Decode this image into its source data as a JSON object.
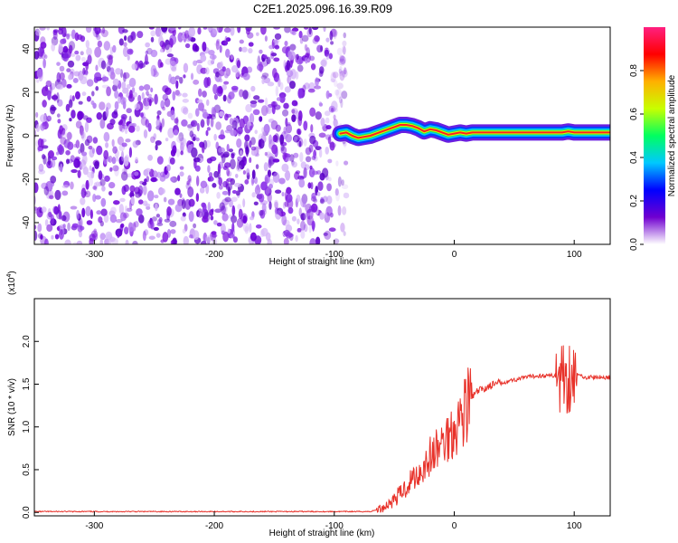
{
  "title": "C2E1.2025.096.16.39.R09",
  "chart_data": [
    {
      "type": "heatmap",
      "xlabel": "Height of straight line (km)",
      "ylabel": "Frequency (Hz)",
      "xlim": [
        -350,
        130
      ],
      "ylim": [
        -50,
        50
      ],
      "xticks": [
        -300,
        -200,
        -100,
        0,
        100
      ],
      "yticks": [
        -40,
        -20,
        0,
        20,
        40
      ],
      "colorbar": {
        "label": "Normalized spectral amplitude",
        "range": [
          0,
          1
        ],
        "ticks": [
          "0.0",
          "0.2",
          "0.4",
          "0.6",
          "0.8"
        ],
        "colors": [
          "#ffffff",
          "#7000d0",
          "#0000ff",
          "#00c8ff",
          "#00ff60",
          "#c8ff00",
          "#ffb000",
          "#ff0000",
          "#ff2080"
        ]
      },
      "noise_region_x": [
        -350,
        -90
      ],
      "signal_trace": {
        "x": [
          -95,
          -90,
          -85,
          -80,
          -75,
          -70,
          -65,
          -60,
          -55,
          -50,
          -45,
          -40,
          -35,
          -30,
          -25,
          -20,
          -15,
          -10,
          -5,
          0,
          5,
          10,
          15,
          20,
          25,
          30,
          50,
          80,
          90,
          95,
          100,
          130
        ],
        "y": [
          1,
          1.5,
          0,
          -1,
          -0.5,
          0,
          1,
          2,
          3,
          4,
          5,
          5,
          4.5,
          3.5,
          2,
          3,
          2.5,
          1.5,
          0.5,
          1,
          1.5,
          1,
          1.5,
          1.5,
          1.5,
          1.5,
          1.5,
          1.5,
          1.5,
          2,
          1.5,
          1.5
        ]
      }
    },
    {
      "type": "line",
      "xlabel": "Height of straight line (km)",
      "ylabel": "SNR (10 * v/v)",
      "yunit": "(x10",
      "yunit_exp": "4",
      "yunit_close": ")",
      "xlim": [
        -350,
        130
      ],
      "ylim": [
        -0.04,
        2.5
      ],
      "xticks": [
        -300,
        -200,
        -100,
        0,
        100
      ],
      "yticks": [
        "0.0",
        "0.5",
        "1.0",
        "1.5",
        "2.0"
      ],
      "color": "#e8322a",
      "x": [
        -350,
        -200,
        -100,
        -70,
        -60,
        -55,
        -50,
        -45,
        -40,
        -35,
        -30,
        -25,
        -20,
        -15,
        -10,
        -5,
        0,
        5,
        10,
        15,
        20,
        25,
        30,
        40,
        50,
        60,
        70,
        80,
        85,
        90,
        95,
        100,
        105,
        110,
        120,
        130
      ],
      "values": [
        0.01,
        0.01,
        0.01,
        0.01,
        0.05,
        0.1,
        0.15,
        0.22,
        0.3,
        0.4,
        0.45,
        0.55,
        0.65,
        0.72,
        0.8,
        0.9,
        1.0,
        1.1,
        1.25,
        1.35,
        1.42,
        1.45,
        1.48,
        1.52,
        1.55,
        1.58,
        1.6,
        1.6,
        1.6,
        1.58,
        1.6,
        1.62,
        1.6,
        1.58,
        1.58,
        1.58
      ]
    }
  ]
}
